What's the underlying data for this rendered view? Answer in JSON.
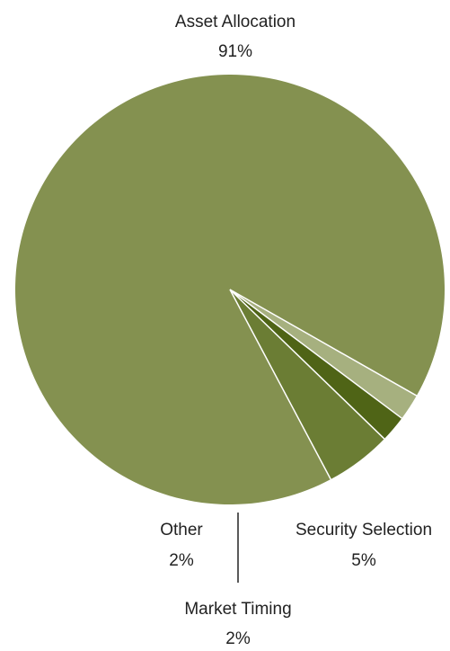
{
  "chart_data": {
    "type": "pie",
    "title": "",
    "slices": [
      {
        "label": "Asset Allocation",
        "value": 91,
        "display": "91%",
        "color": "#849150"
      },
      {
        "label": "Security Selection",
        "value": 5,
        "display": "5%",
        "color": "#6b7d34"
      },
      {
        "label": "Market Timing",
        "value": 2,
        "display": "2%",
        "color": "#4f6416"
      },
      {
        "label": "Other",
        "value": 2,
        "display": "2%",
        "color": "#a6b07f"
      }
    ],
    "legend": "none",
    "separator_color": "#ffffff"
  }
}
